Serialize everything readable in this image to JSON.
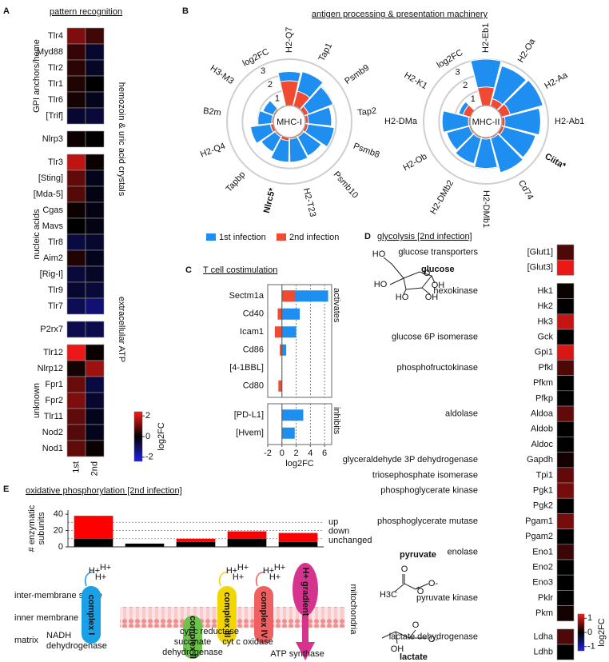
{
  "chart_data": [
    {
      "type": "heatmap",
      "panel": "A",
      "title": "pattern recognition",
      "columns": [
        "1st",
        "2nd"
      ],
      "clim": [
        -2.4,
        2.4
      ],
      "cticks": [
        2,
        0,
        -2
      ],
      "clabel": "log2FC",
      "colors": [
        "#2222e6",
        "#000000",
        "#ff1a1a"
      ],
      "groups": [
        {
          "name": "GPI anchors/heme",
          "side": "left",
          "rows": [
            "Tlr4",
            "Myd88",
            "Tlr2",
            "Tlr1",
            "Tlr6",
            "[Trif]"
          ],
          "values": [
            [
              1.2,
              0.6
            ],
            [
              0.5,
              -0.5
            ],
            [
              0.4,
              -0.4
            ],
            [
              0.3,
              0
            ],
            [
              0.2,
              -0.3
            ],
            [
              -0.5,
              -0.6
            ]
          ]
        },
        {
          "name": "hemozoin & uric acid crystals",
          "side": "right",
          "rows": [
            "Nlrp3"
          ],
          "values": [
            [
              0.1,
              0
            ]
          ]
        },
        {
          "name": "nucleic acids",
          "side": "left",
          "rows": [
            "Tlr3",
            "[Sting]",
            "[Mda-5]",
            "Cgas",
            "Mavs",
            "Tlr8",
            "Aim2",
            "[Rig-I]",
            "Tlr9",
            "Tlr7"
          ],
          "values": [
            [
              1.8,
              0.1
            ],
            [
              0.9,
              -0.3
            ],
            [
              0.8,
              -0.2
            ],
            [
              0.1,
              -0.2
            ],
            [
              0,
              -0.2
            ],
            [
              -0.7,
              -0.5
            ],
            [
              0.3,
              -0.3
            ],
            [
              -0.6,
              -0.4
            ],
            [
              -0.5,
              -0.6
            ],
            [
              -0.9,
              -1.2
            ]
          ]
        },
        {
          "name": "extracellular ATP",
          "side": "right",
          "rows": [
            "P2rx7"
          ],
          "values": [
            [
              -0.8,
              -0.8
            ]
          ]
        },
        {
          "name": "unknown",
          "side": "left",
          "rows": [
            "Tlr12",
            "Nlrp12",
            "Fpr1",
            "Fpr2",
            "Tlr11",
            "Nod2",
            "Nod1"
          ],
          "values": [
            [
              2.2,
              0.1
            ],
            [
              0.2,
              1.5
            ],
            [
              1.0,
              -0.7
            ],
            [
              1.2,
              -0.5
            ],
            [
              0.9,
              -0.3
            ],
            [
              0.8,
              -0.3
            ],
            [
              0.9,
              0.1
            ]
          ]
        }
      ]
    },
    {
      "type": "radial_bar",
      "panel": "B",
      "title": "antigen processing & presentation machinery",
      "rlim": [
        0,
        3
      ],
      "series": [
        {
          "name": "1st infection",
          "color": "#1e8ef0"
        },
        {
          "name": "2nd infection",
          "color": "#f04a32"
        }
      ],
      "plots": [
        {
          "center": "MHC-I",
          "rlabel": "log2FC",
          "rticks": [
            1,
            2,
            3
          ],
          "categories": [
            "H2-Q7",
            "Tap1",
            "Psmb9",
            "Tap2",
            "Psmb8",
            "Psmb10",
            "H2-T23",
            "Nlrc5*",
            "Tapbp",
            "H2-Q4",
            "B2m",
            "H3-M3"
          ],
          "bold": [
            7
          ],
          "values": [
            [
              2.2,
              2.3,
              2.0,
              1.7,
              1.9,
              1.5,
              1.6,
              1.6,
              1.2,
              1.5,
              1.0,
              0.8
            ],
            [
              1.6,
              1.0,
              0.3,
              0.2,
              0.2,
              0.1,
              0.1,
              0.2,
              0.1,
              0.2,
              0.1,
              0.1
            ]
          ]
        },
        {
          "center": "MHC-II",
          "rlabel": "log2FC",
          "rticks": [
            1,
            2,
            3
          ],
          "categories": [
            "H2-Eb1",
            "H2-Oa",
            "H2-Aa",
            "H2-Ab1",
            "Ciita*",
            "Cd74",
            "H2-DMb1",
            "H2-DMb2",
            "H2-Ob",
            "H2-DMa",
            "H2-K1"
          ],
          "bold": [
            4
          ],
          "values": [
            [
              3.0,
              2.7,
              2.8,
              2.5,
              2.3,
              2.4,
              2.0,
              1.8,
              1.6,
              1.8,
              0.8
            ],
            [
              1.2,
              0.5,
              0.6,
              0.2,
              0.2,
              0.1,
              0.1,
              0.1,
              0.1,
              0.1,
              0.5
            ]
          ]
        }
      ]
    },
    {
      "type": "hbar",
      "panel": "C",
      "title": "T cell costimulation",
      "xlabel": "log2FC",
      "xlim": [
        -2,
        7
      ],
      "xticks": [
        -2,
        0,
        2,
        4,
        6
      ],
      "grid": true,
      "colors": [
        "#1e8ef0",
        "#f04a32"
      ],
      "blocks": [
        {
          "label": "activates",
          "categories": [
            "Sectm1a",
            "Cd40",
            "Icam1",
            "Cd86",
            "[4-1BBL]",
            "Cd80"
          ],
          "values": [
            [
              6.5,
              2.5,
              2.0,
              0.6,
              0,
              0
            ],
            [
              1.8,
              -0.6,
              -1.0,
              -0.3,
              0,
              -0.5
            ]
          ]
        },
        {
          "label": "inhibits",
          "categories": [
            "[PD-L1]",
            "[Hvem]"
          ],
          "values": [
            [
              3.0,
              1.8
            ],
            [
              0,
              0
            ]
          ]
        }
      ]
    },
    {
      "type": "heatmap_list",
      "panel": "D",
      "title": "glycolysis [2nd infection]",
      "clim": [
        -1.3,
        1.3
      ],
      "cticks": [
        1,
        0,
        -1
      ],
      "clabel": "log2FC",
      "colors": [
        "#2222e6",
        "#000000",
        "#ff1a1a"
      ],
      "blocks": [
        {
          "rows": [
            "[Glut1]",
            "[Glut3]"
          ],
          "enzymes": [
            "glucose transporters",
            null
          ],
          "values": [
            0.4,
            1.2
          ]
        },
        {
          "rows": [
            "Hk1",
            "Hk2",
            "Hk3",
            "Gck",
            "Gpi1",
            "Pfkl",
            "Pfkm",
            "Pfkp",
            "Aldoa",
            "Aldob",
            "Aldoc",
            "Gapdh",
            "Tpi1",
            "Pgk1",
            "Pgk2",
            "Pgam1",
            "Pgam2",
            "Eno1",
            "Eno2",
            "Eno3",
            "Pklr",
            "Pkm"
          ],
          "enzymes": [
            "hexokinase",
            null,
            null,
            "glucose 6P isomerase",
            null,
            "phosphofructokinase",
            null,
            null,
            "aldolase",
            null,
            null,
            "glyceraldehyde 3P dehydrogenase",
            "triosephosphate isomerase",
            "phosphoglycerate kinase",
            null,
            "phosphoglycerate mutase",
            null,
            "enolase",
            null,
            null,
            "pyruvate kinase",
            null
          ],
          "values": [
            0.05,
            0,
            1.0,
            0,
            1.1,
            0.4,
            0,
            0,
            0.5,
            0,
            0,
            0.1,
            0.5,
            0.6,
            0,
            0.6,
            0,
            0.3,
            0,
            0,
            0,
            0.1
          ]
        },
        {
          "rows": [
            "Ldha",
            "Ldhb"
          ],
          "enzymes": [
            "lactate dehydrogenase",
            null
          ],
          "values": [
            0.4,
            0
          ]
        }
      ],
      "molecules": [
        {
          "name": "glucose",
          "atoms": [
            "HO",
            "O",
            "OH",
            "HO",
            "HO",
            "OH"
          ]
        },
        {
          "name": "pyruvate",
          "atoms": [
            "H3C",
            "O",
            "O",
            "O-"
          ]
        },
        {
          "name": "lactate",
          "atoms": [
            "O",
            "O-",
            "OH"
          ]
        }
      ]
    },
    {
      "type": "stacked_bar",
      "panel": "E",
      "title": "oxidative phosphorylation [2nd infection]",
      "ylabel": [
        "# enzymatic",
        "subunits"
      ],
      "ylim": [
        0,
        45
      ],
      "yticks": [
        0,
        20,
        40
      ],
      "grid_lines": [
        10,
        20,
        30
      ],
      "series": [
        {
          "name": "unchanged",
          "color": "#000000",
          "values": [
            10,
            4,
            6,
            10,
            6
          ]
        },
        {
          "name": "down",
          "color": "#2020d0",
          "values": [
            0,
            0,
            0,
            0,
            0
          ]
        },
        {
          "name": "up",
          "color": "#ff0000",
          "values": [
            28,
            0,
            4,
            9,
            11
          ]
        }
      ],
      "diagram": {
        "regions": [
          "inter-membrane space",
          "inner membrane",
          "matrix"
        ],
        "membrane": "mitochondria",
        "proton": "H+",
        "complexes": [
          {
            "label": "complex I",
            "enzyme": [
              "NADH",
              "dehydrogenase"
            ],
            "color": "#1aa0e6"
          },
          {
            "label": "complex II",
            "enzyme": [
              "succinate",
              "dehydrogenase"
            ],
            "color": "#6cc24a"
          },
          {
            "label": "complex III",
            "enzyme": [
              "cyt c reductase"
            ],
            "color": "#f2d600"
          },
          {
            "label": "complex IV",
            "enzyme": [
              "cyt c oxidase"
            ],
            "color": "#f06060"
          },
          {
            "label": "H+ gradient",
            "enzyme": [
              "ATP synthase"
            ],
            "color": "#d6338f"
          }
        ]
      }
    }
  ]
}
